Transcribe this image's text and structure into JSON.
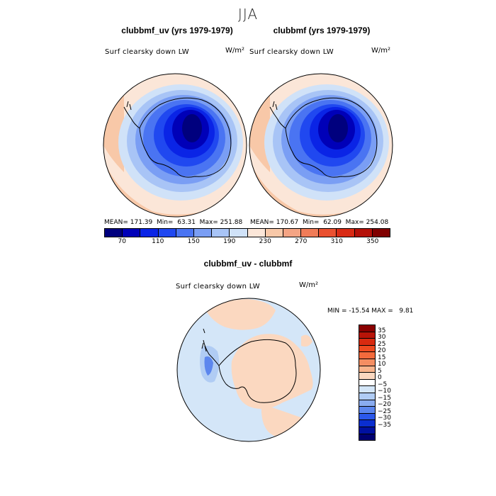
{
  "season_title": "JJA",
  "panel_left": {
    "title": "clubbmf_uv (yrs 1979-1979)",
    "variable": "Surf clearsky down LW",
    "units": "W/m²",
    "stats": "MEAN= 171.39  Min=  63.31  Max= 251.88"
  },
  "panel_right": {
    "title": "clubbmf (yrs 1979-1979)",
    "variable": "Surf clearsky down LW",
    "units": "W/m²",
    "stats": "MEAN= 170.67  Min=  62.09  Max= 254.08"
  },
  "colorbar_top": {
    "ticks": [
      "70",
      "110",
      "150",
      "190",
      "230",
      "270",
      "310",
      "350"
    ],
    "colors": [
      "#00007e",
      "#0000b8",
      "#0a24e6",
      "#2048f0",
      "#4a74f2",
      "#7a9ef4",
      "#a8c4f6",
      "#d0e2f8",
      "#fbe6d8",
      "#f8c8a8",
      "#f4a484",
      "#f07c58",
      "#ea5030",
      "#d82a14",
      "#b41008",
      "#800000"
    ]
  },
  "panel_diff": {
    "title": "clubbmf_uv - clubbmf",
    "variable": "Surf clearsky down LW",
    "units": "W/m²",
    "minmax": "MIN = -15.54 MAX =   9.81"
  },
  "colorbar_diff": {
    "ticks": [
      "35",
      "30",
      "25",
      "20",
      "15",
      "10",
      "5",
      "0",
      "−5",
      "−10",
      "−15",
      "−20",
      "−25",
      "−30",
      "−35"
    ],
    "colors": [
      "#8a0000",
      "#b81408",
      "#d82a10",
      "#ee4a20",
      "#f26a3c",
      "#f48e62",
      "#f8b48c",
      "#fbd8c0",
      "#ffffff",
      "#d4e6f8",
      "#b0ccf4",
      "#8aacf0",
      "#5c86ee",
      "#2c58ea",
      "#0a2ed0",
      "#0010a0",
      "#000070"
    ]
  }
}
